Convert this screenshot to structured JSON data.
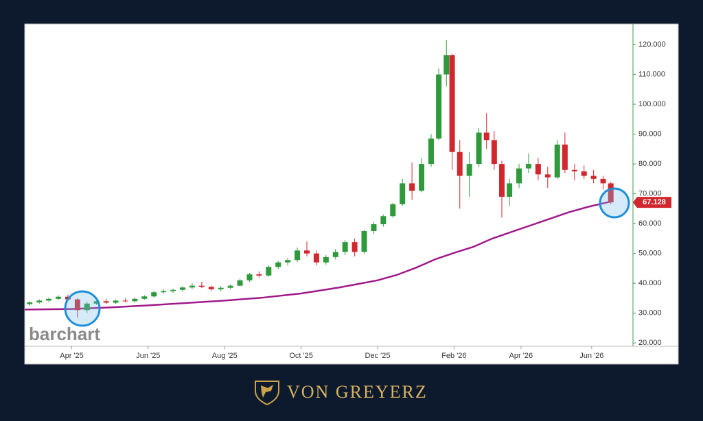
{
  "chart_data": {
    "type": "candlestick",
    "up_color": "#2e9a3c",
    "down_color": "#d0282e",
    "x": [
      2.9,
      3.15,
      3.4,
      3.65,
      3.9,
      4.15,
      4.4,
      4.65,
      4.9,
      5.15,
      5.4,
      5.65,
      5.9,
      6.15,
      6.4,
      6.65,
      6.9,
      7.15,
      7.4,
      7.65,
      7.9,
      8.15,
      8.4,
      8.65,
      8.9,
      9.15,
      9.4,
      9.65,
      9.9,
      10.15,
      10.4,
      10.65,
      10.9,
      11.15,
      11.4,
      11.65,
      11.9,
      12.15,
      12.4,
      12.65,
      12.9,
      13.15,
      13.4,
      13.6,
      13.8,
      13.95,
      14.15,
      14.4,
      14.65,
      14.85,
      15.05,
      15.25,
      15.45,
      15.7,
      15.95,
      16.2,
      16.45,
      16.7,
      16.9,
      17.15,
      17.4,
      17.65,
      17.9,
      18.1
    ],
    "open": [
      33.0,
      33.6,
      34.2,
      34.8,
      35.5,
      34.6,
      31.0,
      33.2,
      34.0,
      33.5,
      34.2,
      34.0,
      34.8,
      35.6,
      37.0,
      37.4,
      37.8,
      38.6,
      39.2,
      38.8,
      38.0,
      38.5,
      39.2,
      41.0,
      43.0,
      42.6,
      45.5,
      47.0,
      47.8,
      51.0,
      50.0,
      47.0,
      48.8,
      50.5,
      53.8,
      50.5,
      57.5,
      59.8,
      62.5,
      66.5,
      73.5,
      71.0,
      80.0,
      88.5,
      110.0,
      116.5,
      84.0,
      76.0,
      80.0,
      90.5,
      88.0,
      80.0,
      69.0,
      73.5,
      78.5,
      80.0,
      76.5,
      75.5,
      86.5,
      78.0,
      77.5,
      76.0,
      75.0,
      73.5
    ],
    "high": [
      34.0,
      34.6,
      35.2,
      36.0,
      36.2,
      35.0,
      33.8,
      34.6,
      34.8,
      34.5,
      35.0,
      35.2,
      36.0,
      37.5,
      38.0,
      38.2,
      39.0,
      40.0,
      40.5,
      39.2,
      39.0,
      39.6,
      41.5,
      43.5,
      44.0,
      46.0,
      47.5,
      48.5,
      52.0,
      54.0,
      51.0,
      49.5,
      51.5,
      54.5,
      55.0,
      58.0,
      60.5,
      63.0,
      67.0,
      75.0,
      80.5,
      82.0,
      90.0,
      112.0,
      121.5,
      117.0,
      88.0,
      84.0,
      92.0,
      97.0,
      91.0,
      81.0,
      75.0,
      80.0,
      83.5,
      82.0,
      79.0,
      88.0,
      90.5,
      80.0,
      79.5,
      78.0,
      76.0,
      74.0
    ],
    "low": [
      32.5,
      33.2,
      33.8,
      34.4,
      34.0,
      28.5,
      30.0,
      32.8,
      33.0,
      33.0,
      33.6,
      33.5,
      34.5,
      35.2,
      36.5,
      36.8,
      37.2,
      38.0,
      38.4,
      37.5,
      37.4,
      38.0,
      39.0,
      40.5,
      42.0,
      42.2,
      44.8,
      46.0,
      47.2,
      49.0,
      46.0,
      46.2,
      48.0,
      49.5,
      49.0,
      50.0,
      56.5,
      59.0,
      62.0,
      66.0,
      68.0,
      70.5,
      79.0,
      88.0,
      106.0,
      78.0,
      65.0,
      69.0,
      79.0,
      85.0,
      78.0,
      62.0,
      66.0,
      72.0,
      77.0,
      74.5,
      72.0,
      75.0,
      77.0,
      74.5,
      75.0,
      73.5,
      71.5,
      66.5
    ],
    "close": [
      33.6,
      34.2,
      34.8,
      35.5,
      34.6,
      31.0,
      33.2,
      34.0,
      33.5,
      34.2,
      34.0,
      34.8,
      35.6,
      37.0,
      37.4,
      37.8,
      38.6,
      39.2,
      38.8,
      38.0,
      38.5,
      39.2,
      41.0,
      43.0,
      42.6,
      45.5,
      47.0,
      47.8,
      51.0,
      50.0,
      47.0,
      48.8,
      50.5,
      53.8,
      50.5,
      57.5,
      59.8,
      62.5,
      66.5,
      73.5,
      71.0,
      80.0,
      88.5,
      110.0,
      116.5,
      84.0,
      76.0,
      80.0,
      90.5,
      88.0,
      80.0,
      69.0,
      73.5,
      78.5,
      80.0,
      76.5,
      75.5,
      86.5,
      78.0,
      77.5,
      76.0,
      75.0,
      73.5,
      67.128
    ],
    "moving_average": {
      "color": "#a0198a",
      "x": [
        2.77,
        4,
        5,
        6,
        7,
        8,
        9,
        10,
        11,
        12,
        12.5,
        13,
        13.5,
        14,
        14.5,
        15,
        15.5,
        16,
        16.5,
        17,
        17.5,
        18.1
      ],
      "values": [
        31.2,
        31.4,
        31.9,
        32.6,
        33.4,
        34.2,
        35.2,
        36.6,
        38.6,
        41.0,
        42.8,
        45.2,
        48.0,
        50.2,
        52.2,
        55.0,
        57.2,
        59.4,
        61.6,
        63.8,
        65.6,
        67.4
      ]
    },
    "last_price": 67.128,
    "xlim": [
      2.77,
      18.68
    ],
    "ylim": [
      18.9,
      126.9
    ],
    "xticks": [
      {
        "value": 4,
        "label": "Apr '25"
      },
      {
        "value": 6,
        "label": "Jun '25"
      },
      {
        "value": 8,
        "label": "Aug '25"
      },
      {
        "value": 10,
        "label": "Oct '25"
      },
      {
        "value": 12,
        "label": "Dec '25"
      },
      {
        "value": 14,
        "label": "Feb '26"
      },
      {
        "value": 15.75,
        "label": "Apr '26"
      },
      {
        "value": 17.6,
        "label": "Jun '26"
      }
    ],
    "yticks": [
      {
        "value": 20,
        "label": "20.000"
      },
      {
        "value": 30,
        "label": "30.000"
      },
      {
        "value": 40,
        "label": "40.000"
      },
      {
        "value": 50,
        "label": "50.000"
      },
      {
        "value": 60,
        "label": "60.000"
      },
      {
        "value": 70,
        "label": "70.000"
      },
      {
        "value": 80,
        "label": "80.000"
      },
      {
        "value": 90,
        "label": "90.000"
      },
      {
        "value": 100,
        "label": "100.000"
      },
      {
        "value": 110,
        "label": "110.000"
      },
      {
        "value": 120,
        "label": "120.000"
      }
    ],
    "watermark": "barchart"
  },
  "brand": "VON GREYERZ"
}
